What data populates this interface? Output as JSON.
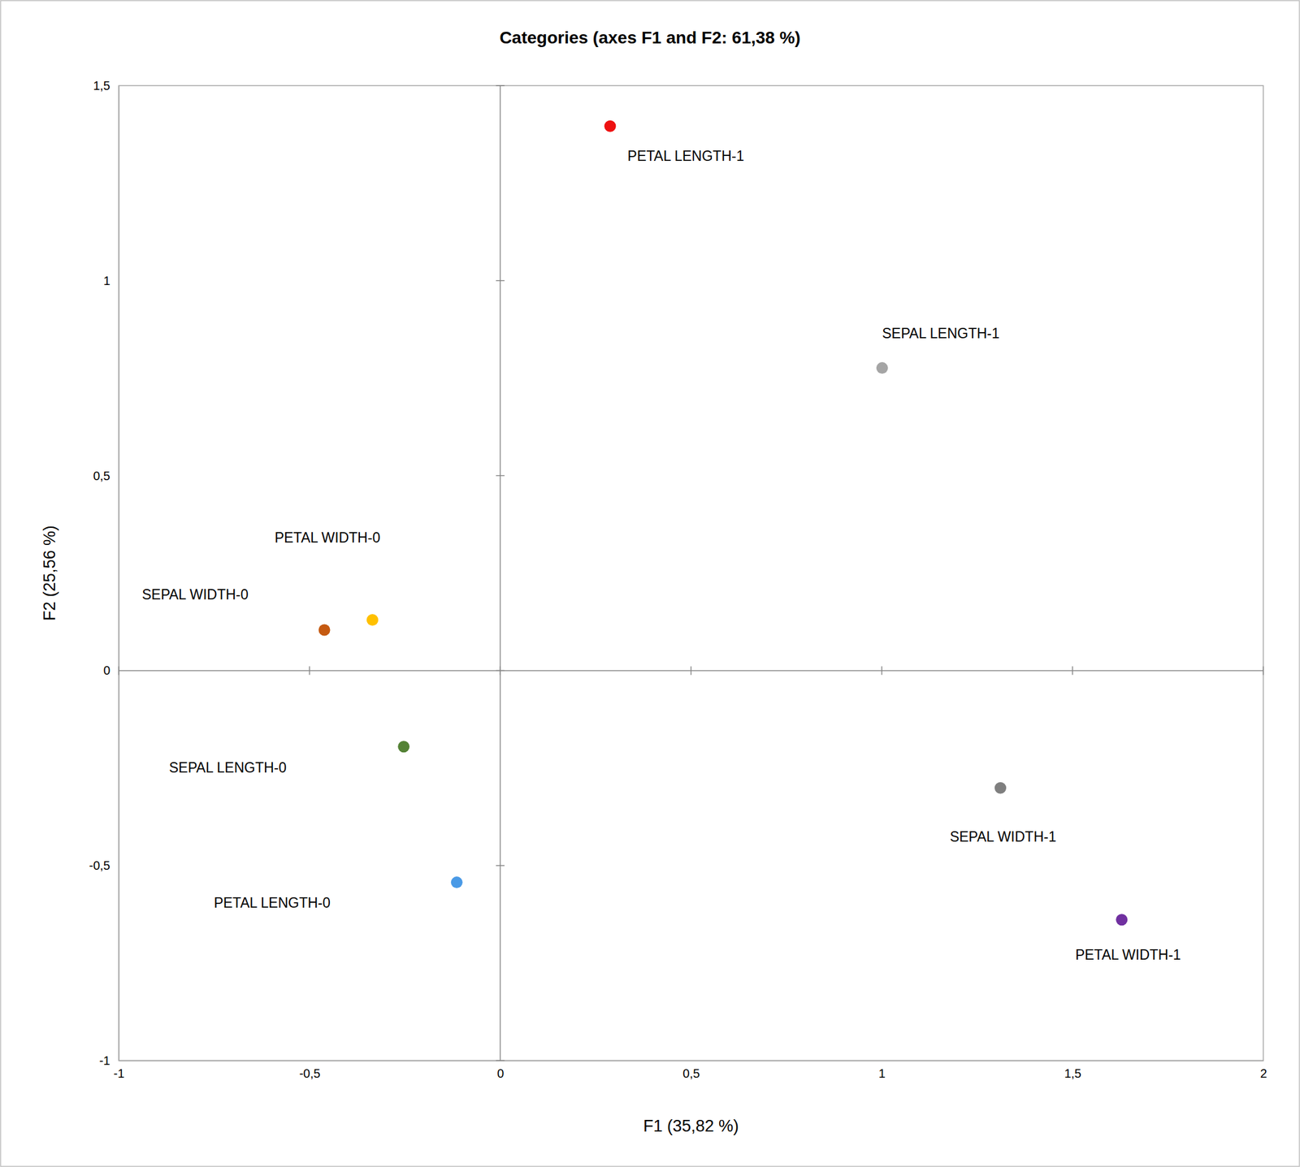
{
  "chart_data": {
    "type": "scatter",
    "title": "Categories (axes F1 and F2: 61,38 %)",
    "x_label": "F1 (35,82 %)",
    "y_label": "F2 (25,56 %)",
    "labels": [
      "PETAL LENGTH-1",
      "SEPAL LENGTH-1",
      "PETAL WIDTH-0",
      "SEPAL WIDTH-0",
      "SEPAL LENGTH-0",
      "PETAL LENGTH-0",
      "SEPAL WIDTH-1",
      "PETAL WIDTH-1"
    ],
    "x": [
      0.288,
      1.001,
      -0.335,
      -0.461,
      -0.253,
      -0.114,
      1.311,
      1.629
    ],
    "values": [
      1.396,
      0.776,
      0.13,
      0.104,
      -0.195,
      -0.543,
      -0.301,
      -0.639
    ],
    "colors": [
      "#ee1111",
      "#a5a5a5",
      "#ffc000",
      "#c55a11",
      "#548235",
      "#4a9ae6",
      "#7f7f7f",
      "#7030a0"
    ],
    "xlim": [
      -1,
      2
    ],
    "ylim": [
      -1,
      1.5
    ],
    "xticks": [
      -1,
      {
        "value": -0.5,
        "label": "-0,5"
      },
      0,
      {
        "value": 0.5,
        "label": "0,5"
      },
      1,
      {
        "value": 1.5,
        "label": "1,5"
      },
      2
    ],
    "yticks": [
      -1,
      {
        "value": -0.5,
        "label": "-0,5"
      },
      0,
      {
        "value": 0.5,
        "label": "0,5"
      },
      1,
      {
        "value": 1.5,
        "label": "1,5"
      }
    ]
  }
}
